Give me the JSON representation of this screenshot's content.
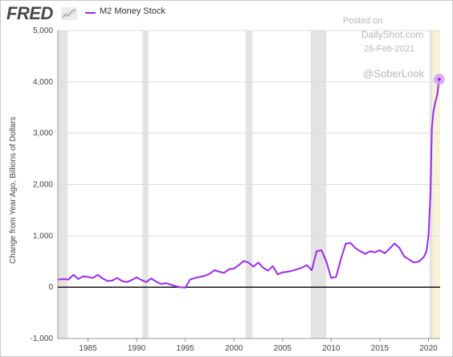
{
  "header": {
    "logo_text": "FRED",
    "logo_icon": "trend-line-icon",
    "series_title": "M2 Money Stock"
  },
  "watermark": {
    "posted": "Posted on",
    "site": "DailyShot.com",
    "date": "26-Feb-2021",
    "handle": "@SoberLook"
  },
  "colors": {
    "series": "#9b2bf0",
    "recession": "#e3e3e3",
    "latest_band": "#f7f3d9",
    "zero_line": "#000000",
    "grid": "#dcdcdc",
    "marker": "#d4a2f7"
  },
  "chart_data": {
    "type": "line",
    "title": "M2 Money Stock",
    "xlabel": "",
    "ylabel": "Change from Year Ago, Billions of Dollars",
    "xlim": [
      1981.9,
      2021.2
    ],
    "ylim": [
      -1000,
      5000
    ],
    "grid": true,
    "yticks": [
      -1000,
      0,
      1000,
      2000,
      3000,
      4000,
      5000
    ],
    "ytick_labels": [
      "-1,000",
      "0",
      "1,000",
      "2,000",
      "3,000",
      "4,000",
      "5,000"
    ],
    "xticks": [
      1985,
      1990,
      1995,
      2000,
      2005,
      2010,
      2015,
      2020
    ],
    "xtick_labels": [
      "1985",
      "1990",
      "1995",
      "2000",
      "2005",
      "2010",
      "2015",
      "2020"
    ],
    "recessions": [
      [
        1981.9,
        1982.9
      ],
      [
        1990.6,
        1991.2
      ],
      [
        2001.2,
        2001.9
      ],
      [
        2007.9,
        2009.5
      ],
      [
        2020.1,
        2020.4
      ]
    ],
    "highlight_band": [
      2020.2,
      2021.2
    ],
    "series": [
      {
        "name": "M2 Money Stock",
        "x": [
          1982.0,
          1982.5,
          1983.0,
          1983.5,
          1984.0,
          1984.5,
          1985.0,
          1985.5,
          1986.0,
          1986.5,
          1987.0,
          1987.5,
          1988.0,
          1988.5,
          1989.0,
          1989.5,
          1990.0,
          1990.5,
          1991.0,
          1991.5,
          1992.0,
          1992.5,
          1993.0,
          1993.5,
          1994.0,
          1994.5,
          1995.0,
          1995.5,
          1996.0,
          1996.5,
          1997.0,
          1997.5,
          1998.0,
          1998.5,
          1999.0,
          1999.5,
          2000.0,
          2000.5,
          2001.0,
          2001.5,
          2002.0,
          2002.5,
          2003.0,
          2003.5,
          2004.0,
          2004.5,
          2005.0,
          2005.5,
          2006.0,
          2006.5,
          2007.0,
          2007.5,
          2008.0,
          2008.5,
          2009.0,
          2009.5,
          2010.0,
          2010.5,
          2011.0,
          2011.5,
          2012.0,
          2012.5,
          2013.0,
          2013.5,
          2014.0,
          2014.5,
          2015.0,
          2015.5,
          2016.0,
          2016.5,
          2017.0,
          2017.5,
          2018.0,
          2018.5,
          2019.0,
          2019.5,
          2019.8,
          2020.0,
          2020.2,
          2020.35,
          2020.5,
          2020.7,
          2020.9,
          2021.0,
          2021.1
        ],
        "values": [
          150,
          160,
          150,
          240,
          160,
          210,
          200,
          180,
          240,
          170,
          120,
          130,
          180,
          120,
          100,
          140,
          190,
          140,
          100,
          170,
          110,
          60,
          80,
          50,
          20,
          0,
          -10,
          150,
          180,
          200,
          220,
          260,
          330,
          300,
          280,
          350,
          360,
          430,
          510,
          480,
          400,
          480,
          380,
          320,
          410,
          250,
          290,
          300,
          320,
          350,
          380,
          430,
          330,
          700,
          720,
          500,
          180,
          200,
          550,
          850,
          860,
          760,
          700,
          650,
          700,
          680,
          720,
          660,
          750,
          850,
          770,
          600,
          540,
          480,
          500,
          580,
          700,
          1000,
          1800,
          3100,
          3400,
          3600,
          3750,
          3900,
          4050
        ]
      }
    ]
  }
}
